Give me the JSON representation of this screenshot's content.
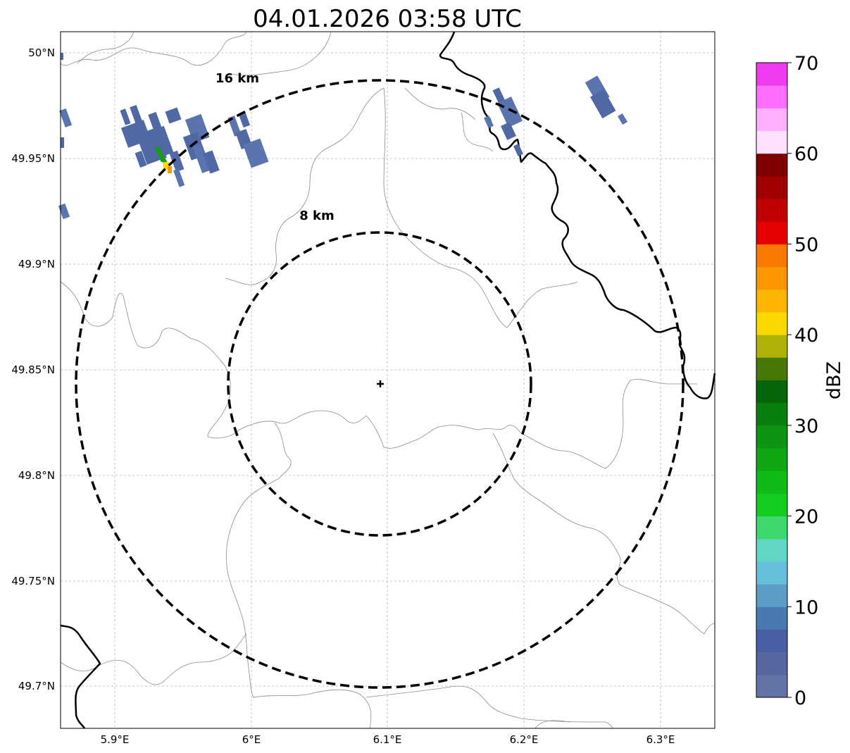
{
  "title": "04.01.2026 03:58 UTC",
  "map": {
    "lon_ticks": [
      "5.9°E",
      "6°E",
      "6.1°E",
      "6.2°E",
      "6.3°E"
    ],
    "lat_ticks": [
      "50°N",
      "49.95°N",
      "49.9°N",
      "49.85°N",
      "49.8°N",
      "49.75°N",
      "49.7°N"
    ],
    "lon_range": [
      5.86,
      6.34
    ],
    "lat_range": [
      49.68,
      50.01
    ],
    "grid": true,
    "radar_site": {
      "lon": 6.095,
      "lat": 49.843
    },
    "range_rings": [
      {
        "label": "8 km",
        "radius_km": 8
      },
      {
        "label": "16 km",
        "radius_km": 16
      }
    ]
  },
  "colorbar": {
    "label": "dBZ",
    "ticks": [
      "0",
      "10",
      "20",
      "30",
      "40",
      "50",
      "60",
      "70"
    ],
    "colors": [
      "#6373a6",
      "#5667a0",
      "#4860a3",
      "#4a78b0",
      "#5a9ec8",
      "#66c0da",
      "#62d6c4",
      "#3dd86e",
      "#12cc1f",
      "#10bb18",
      "#0fa814",
      "#0c9412",
      "#09800e",
      "#056509",
      "#477807",
      "#afb108",
      "#fbd800",
      "#fcb500",
      "#fc9700",
      "#fc7900",
      "#e40000",
      "#c00000",
      "#a00000",
      "#7e0000",
      "#ffe1ff",
      "#ffb0ff",
      "#ff6eff",
      "#f03cf0"
    ],
    "bounds": [
      0,
      70
    ]
  },
  "echo_colors": {
    "low": "#4f6aa5",
    "mid": "#5a74ae",
    "green": "#1a9a1a",
    "yellow": "#fbd800",
    "orange": "#fc9700"
  }
}
